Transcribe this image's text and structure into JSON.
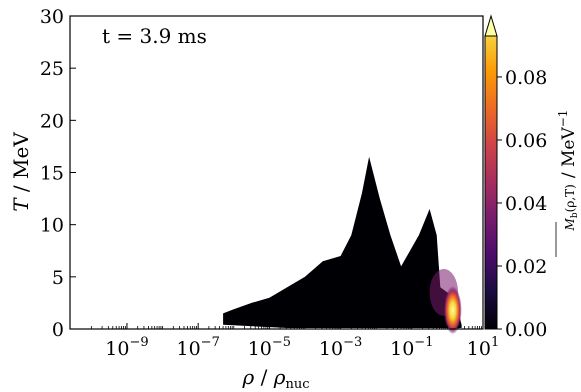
{
  "chart_data": {
    "type": "heatmap",
    "annotation": "t = 3.9 ms",
    "xlabel": "ρ / ρnuc",
    "ylabel": "T / MeV",
    "x_scale": "log",
    "xlim_log10": [
      -10.6,
      1.0
    ],
    "x_ticks": [
      {
        "exp": -9,
        "label": "10^-9"
      },
      {
        "exp": -7,
        "label": "10^-7"
      },
      {
        "exp": -5,
        "label": "10^-5"
      },
      {
        "exp": -3,
        "label": "10^-3"
      },
      {
        "exp": -1,
        "label": "10^-1"
      },
      {
        "exp": 1,
        "label": "10^1"
      }
    ],
    "ylim": [
      0,
      30
    ],
    "y_ticks": [
      0,
      5,
      10,
      15,
      20,
      25,
      30
    ],
    "colorbar": {
      "label": "Mb(ρ,T) / MeV^-1",
      "colormap": "inferno",
      "range": [
        0,
        0.093
      ],
      "extend": "max",
      "ticks": [
        "0.00",
        "0.02",
        "0.04",
        "0.06",
        "0.08"
      ]
    },
    "occupied_region_upper_envelope": [
      {
        "log_rho": -6.3,
        "T": 1.5
      },
      {
        "log_rho": -6.0,
        "T": 1.9
      },
      {
        "log_rho": -5.5,
        "T": 2.5
      },
      {
        "log_rho": -5.0,
        "T": 3.0
      },
      {
        "log_rho": -4.5,
        "T": 4.0
      },
      {
        "log_rho": -4.0,
        "T": 5.0
      },
      {
        "log_rho": -3.5,
        "T": 6.5
      },
      {
        "log_rho": -3.0,
        "T": 7.0
      },
      {
        "log_rho": -2.7,
        "T": 9.0
      },
      {
        "log_rho": -2.4,
        "T": 13.0
      },
      {
        "log_rho": -2.2,
        "T": 16.5
      },
      {
        "log_rho": -1.9,
        "T": 12.5
      },
      {
        "log_rho": -1.6,
        "T": 9.0
      },
      {
        "log_rho": -1.3,
        "T": 6.0
      },
      {
        "log_rho": -0.8,
        "T": 9.0
      },
      {
        "log_rho": -0.5,
        "T": 11.5
      },
      {
        "log_rho": -0.3,
        "T": 9.0
      },
      {
        "log_rho": -0.2,
        "T": 4.0
      },
      {
        "log_rho": 0.2,
        "T": 3.0
      },
      {
        "log_rho": 0.4,
        "T": 0.4
      }
    ],
    "occupied_region_lower_envelope": [
      {
        "log_rho": -6.3,
        "T": 0.4
      },
      {
        "log_rho": -4.5,
        "T": 0.1
      },
      {
        "log_rho": 0.4,
        "T": 0.1
      }
    ],
    "bright_region": {
      "log_rho": [
        -0.5,
        0.3
      ],
      "T": [
        0.2,
        5.5
      ],
      "peak": {
        "log_rho": 0.15,
        "T": 1.8,
        "value": 0.093
      }
    }
  }
}
